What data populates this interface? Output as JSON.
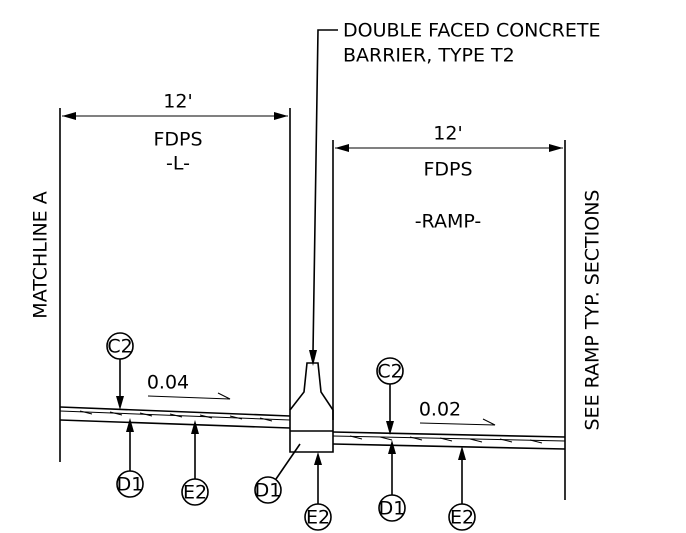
{
  "callout": {
    "lines": [
      "DOUBLE FACED  CONCRETE",
      "BARRIER, TYPE T2"
    ]
  },
  "left": {
    "width": "12'",
    "label": "FDPS",
    "alignment": "-L-"
  },
  "right": {
    "width": "12'",
    "label": "FDPS",
    "alignment": "-RAMP-"
  },
  "matchline": "MATCHLINE A",
  "see_note": "SEE RAMP TYP. SECTIONS",
  "slopes": {
    "left": "0.04",
    "right": "0.02"
  },
  "markers": [
    "C2",
    "D1",
    "E2",
    "D1",
    "E2",
    "C2",
    "D1",
    "E2"
  ]
}
